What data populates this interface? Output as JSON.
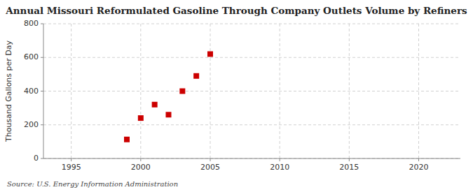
{
  "chart_data": {
    "type": "scatter",
    "title": "Annual Missouri Reformulated Gasoline Through Company Outlets Volume by Refiners",
    "y_label": "Thousand Gallons per Day",
    "source": "Source: U.S. Energy Information Administration",
    "x": [
      1999,
      2000,
      2001,
      2002,
      2003,
      2004,
      2005
    ],
    "values": [
      113,
      240,
      320,
      260,
      400,
      490,
      620
    ],
    "xlim": [
      1993,
      2023
    ],
    "ylim": [
      0,
      800
    ],
    "xticks": [
      1995,
      2000,
      2005,
      2010,
      2015,
      2020
    ],
    "yticks": [
      0,
      200,
      400,
      600,
      800
    ],
    "color": "#cc0000",
    "marker": "square",
    "grid": true
  }
}
